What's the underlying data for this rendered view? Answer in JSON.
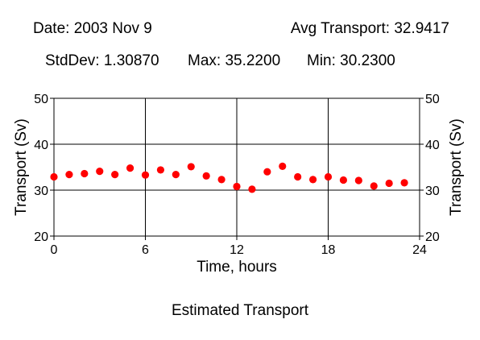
{
  "header": {
    "date": "Date: 2003 Nov 9",
    "avg": "Avg Transport: 32.9417",
    "stddev": "StdDev: 1.30870",
    "max": "Max: 35.2200",
    "min": "Min: 30.2300"
  },
  "footer": {
    "caption": "Estimated Transport"
  },
  "chart_data": {
    "type": "scatter",
    "title": "Estimated Transport",
    "xlabel": "Time, hours",
    "ylabel": "Transport (Sv)",
    "ylabel_right": "Transport (Sv)",
    "xlim": [
      0,
      24
    ],
    "ylim": [
      20,
      50
    ],
    "xticks": [
      0,
      6,
      12,
      18,
      24
    ],
    "yticks": [
      20,
      30,
      40,
      50
    ],
    "grid": true,
    "marker_color": "#ff0000",
    "series": [
      {
        "x": [
          0,
          1,
          2,
          3,
          4,
          5,
          6,
          7,
          8,
          9,
          10,
          11,
          12,
          13,
          14,
          15,
          16,
          17,
          18,
          19,
          20,
          21,
          22,
          23
        ],
        "y": [
          32.9,
          33.4,
          33.6,
          34.1,
          33.4,
          34.8,
          33.3,
          34.4,
          33.4,
          35.1,
          33.1,
          32.3,
          30.8,
          30.2,
          34.0,
          35.2,
          32.9,
          32.3,
          32.9,
          32.2,
          32.1,
          30.9,
          31.5,
          31.6
        ]
      }
    ]
  }
}
